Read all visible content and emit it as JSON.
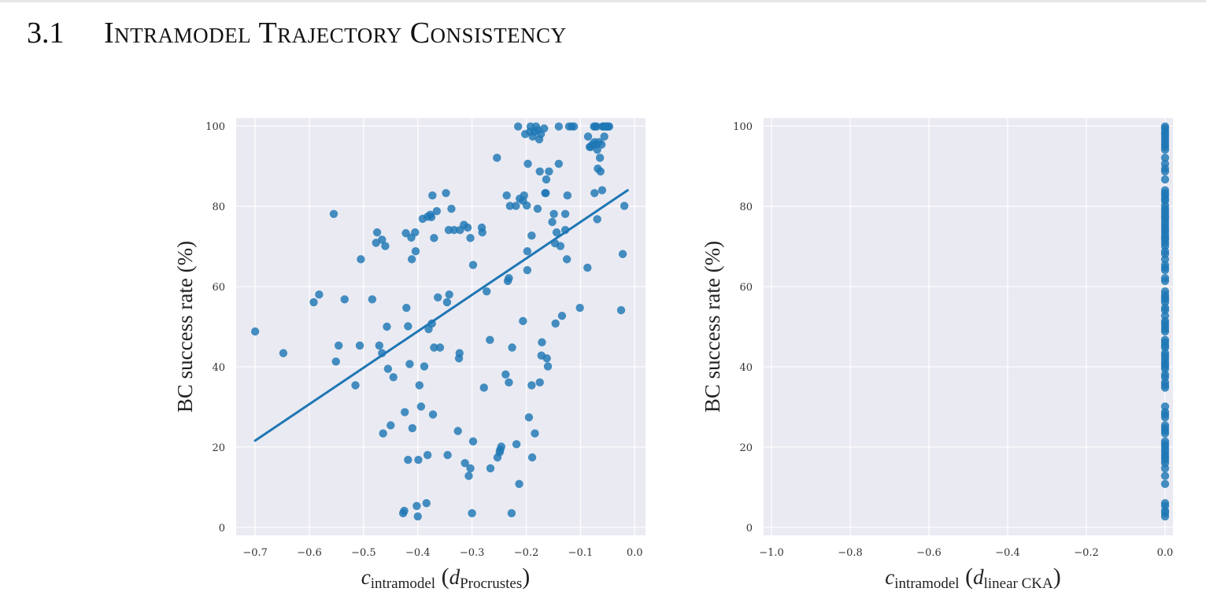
{
  "section": {
    "number": "3.1",
    "title": "Intramodel Trajectory Consistency"
  },
  "colors": {
    "point": "#1f77b4",
    "line": "#1f77b4",
    "plot_bg": "#eaeaf2",
    "grid": "#ffffff"
  },
  "chart_data": [
    {
      "type": "scatter",
      "title": "",
      "xlabel_main": "c",
      "xlabel_sub": "intramodel",
      "xlabel_paren_var": "d",
      "xlabel_paren_sub": "Procrustes",
      "ylabel": "BC success rate (%)",
      "xlim": [
        -0.735,
        0.02
      ],
      "ylim": [
        -2,
        102
      ],
      "xticks": [
        -0.7,
        -0.6,
        -0.5,
        -0.4,
        -0.3,
        -0.2,
        -0.1,
        0.0
      ],
      "xtick_labels": [
        "−0.7",
        "−0.6",
        "−0.5",
        "−0.4",
        "−0.3",
        "−0.2",
        "−0.1",
        "0.0"
      ],
      "yticks": [
        0,
        20,
        40,
        60,
        80,
        100
      ],
      "ytick_labels": [
        "0",
        "20",
        "40",
        "60",
        "80",
        "100"
      ],
      "grid": true,
      "regression": {
        "x": [
          -0.7,
          -0.013
        ],
        "y": [
          21.6,
          84.0
        ]
      },
      "points": [
        [
          -0.7,
          48.8
        ],
        [
          -0.648,
          43.4
        ],
        [
          -0.592,
          56.1
        ],
        [
          -0.582,
          58.0
        ],
        [
          -0.555,
          78.1
        ],
        [
          -0.551,
          41.3
        ],
        [
          -0.546,
          45.3
        ],
        [
          -0.535,
          56.8
        ],
        [
          -0.515,
          35.4
        ],
        [
          -0.507,
          45.3
        ],
        [
          -0.505,
          66.8
        ],
        [
          -0.484,
          56.8
        ],
        [
          -0.477,
          70.9
        ],
        [
          -0.475,
          73.5
        ],
        [
          -0.471,
          45.3
        ],
        [
          -0.466,
          71.7
        ],
        [
          -0.466,
          43.4
        ],
        [
          -0.464,
          23.4
        ],
        [
          -0.46,
          70.1
        ],
        [
          -0.457,
          50.0
        ],
        [
          -0.455,
          39.5
        ],
        [
          -0.45,
          25.4
        ],
        [
          -0.445,
          37.4
        ],
        [
          -0.427,
          3.5
        ],
        [
          -0.425,
          4.1
        ],
        [
          -0.424,
          28.7
        ],
        [
          -0.422,
          73.3
        ],
        [
          -0.421,
          54.7
        ],
        [
          -0.418,
          16.8
        ],
        [
          -0.418,
          50.1
        ],
        [
          -0.415,
          40.7
        ],
        [
          -0.412,
          72.2
        ],
        [
          -0.411,
          66.8
        ],
        [
          -0.41,
          24.7
        ],
        [
          -0.405,
          73.5
        ],
        [
          -0.404,
          68.8
        ],
        [
          -0.402,
          5.3
        ],
        [
          -0.4,
          2.7
        ],
        [
          -0.399,
          16.8
        ],
        [
          -0.397,
          35.4
        ],
        [
          -0.394,
          30.1
        ],
        [
          -0.391,
          76.9
        ],
        [
          -0.388,
          40.1
        ],
        [
          -0.384,
          6.0
        ],
        [
          -0.382,
          77.4
        ],
        [
          -0.382,
          18.0
        ],
        [
          -0.38,
          49.4
        ],
        [
          -0.377,
          77.9
        ],
        [
          -0.375,
          77.3
        ],
        [
          -0.374,
          50.8
        ],
        [
          -0.373,
          82.7
        ],
        [
          -0.372,
          28.1
        ],
        [
          -0.37,
          72.1
        ],
        [
          -0.37,
          44.8
        ],
        [
          -0.365,
          78.8
        ],
        [
          -0.363,
          57.3
        ],
        [
          -0.359,
          44.8
        ],
        [
          -0.348,
          83.3
        ],
        [
          -0.346,
          56.1
        ],
        [
          -0.345,
          18.0
        ],
        [
          -0.343,
          74.1
        ],
        [
          -0.342,
          58.0
        ],
        [
          -0.338,
          79.4
        ],
        [
          -0.333,
          74.1
        ],
        [
          -0.326,
          24.0
        ],
        [
          -0.324,
          42.1
        ],
        [
          -0.323,
          43.4
        ],
        [
          -0.322,
          74.1
        ],
        [
          -0.315,
          75.4
        ],
        [
          -0.313,
          16.0
        ],
        [
          -0.308,
          74.7
        ],
        [
          -0.306,
          12.8
        ],
        [
          -0.303,
          14.7
        ],
        [
          -0.303,
          72.1
        ],
        [
          -0.3,
          3.5
        ],
        [
          -0.298,
          65.4
        ],
        [
          -0.298,
          21.4
        ],
        [
          -0.282,
          74.7
        ],
        [
          -0.281,
          73.5
        ],
        [
          -0.278,
          34.8
        ],
        [
          -0.273,
          58.8
        ],
        [
          -0.267,
          46.7
        ],
        [
          -0.266,
          14.7
        ],
        [
          -0.254,
          92.1
        ],
        [
          -0.253,
          17.4
        ],
        [
          -0.249,
          18.7
        ],
        [
          -0.248,
          19.3
        ],
        [
          -0.246,
          20.1
        ],
        [
          -0.238,
          38.1
        ],
        [
          -0.236,
          82.7
        ],
        [
          -0.234,
          61.4
        ],
        [
          -0.232,
          36.1
        ],
        [
          -0.232,
          62.1
        ],
        [
          -0.23,
          80.1
        ],
        [
          -0.227,
          3.5
        ],
        [
          -0.226,
          44.8
        ],
        [
          -0.219,
          80.1
        ],
        [
          -0.218,
          20.7
        ],
        [
          -0.215,
          99.9
        ],
        [
          -0.213,
          10.8
        ],
        [
          -0.212,
          81.9
        ],
        [
          -0.206,
          81.4
        ],
        [
          -0.206,
          51.4
        ],
        [
          -0.204,
          82.7
        ],
        [
          -0.202,
          98.0
        ],
        [
          -0.199,
          80.2
        ],
        [
          -0.198,
          64.1
        ],
        [
          -0.198,
          68.8
        ],
        [
          -0.197,
          90.6
        ],
        [
          -0.195,
          27.4
        ],
        [
          -0.193,
          98.6
        ],
        [
          -0.192,
          99.9
        ],
        [
          -0.19,
          35.4
        ],
        [
          -0.19,
          72.7
        ],
        [
          -0.189,
          17.4
        ],
        [
          -0.188,
          97.4
        ],
        [
          -0.185,
          98.6
        ],
        [
          -0.184,
          23.4
        ],
        [
          -0.182,
          99.9
        ],
        [
          -0.179,
          79.4
        ],
        [
          -0.178,
          99.0
        ],
        [
          -0.176,
          96.7
        ],
        [
          -0.175,
          36.1
        ],
        [
          -0.175,
          88.7
        ],
        [
          -0.173,
          98.0
        ],
        [
          -0.172,
          42.8
        ],
        [
          -0.171,
          46.1
        ],
        [
          -0.167,
          99.4
        ],
        [
          -0.165,
          83.3
        ],
        [
          -0.164,
          83.3
        ],
        [
          -0.163,
          86.7
        ],
        [
          -0.162,
          42.1
        ],
        [
          -0.16,
          40.1
        ],
        [
          -0.158,
          88.7
        ],
        [
          -0.152,
          76.1
        ],
        [
          -0.149,
          78.1
        ],
        [
          -0.147,
          70.8
        ],
        [
          -0.146,
          50.8
        ],
        [
          -0.144,
          73.5
        ],
        [
          -0.14,
          99.9
        ],
        [
          -0.14,
          90.6
        ],
        [
          -0.137,
          70.1
        ],
        [
          -0.134,
          52.7
        ],
        [
          -0.128,
          74.1
        ],
        [
          -0.128,
          78.1
        ],
        [
          -0.125,
          66.8
        ],
        [
          -0.124,
          82.7
        ],
        [
          -0.121,
          99.9
        ],
        [
          -0.116,
          99.9
        ],
        [
          -0.112,
          99.9
        ],
        [
          -0.101,
          54.7
        ],
        [
          -0.087,
          64.7
        ],
        [
          -0.086,
          97.4
        ],
        [
          -0.083,
          94.8
        ],
        [
          -0.081,
          94.8
        ],
        [
          -0.078,
          95.4
        ],
        [
          -0.075,
          99.9
        ],
        [
          -0.074,
          96.0
        ],
        [
          -0.074,
          83.3
        ],
        [
          -0.073,
          99.9
        ],
        [
          -0.071,
          95.4
        ],
        [
          -0.07,
          99.9
        ],
        [
          -0.069,
          94.1
        ],
        [
          -0.069,
          76.8
        ],
        [
          -0.068,
          89.4
        ],
        [
          -0.066,
          96.0
        ],
        [
          -0.064,
          92.1
        ],
        [
          -0.063,
          88.7
        ],
        [
          -0.061,
          95.4
        ],
        [
          -0.06,
          84.0
        ],
        [
          -0.059,
          99.9
        ],
        [
          -0.058,
          99.9
        ],
        [
          -0.056,
          97.4
        ],
        [
          -0.055,
          99.9
        ],
        [
          -0.053,
          99.9
        ],
        [
          -0.051,
          99.9
        ],
        [
          -0.049,
          99.9
        ],
        [
          -0.047,
          99.9
        ],
        [
          -0.025,
          54.1
        ],
        [
          -0.022,
          68.1
        ],
        [
          -0.019,
          80.1
        ]
      ]
    },
    {
      "type": "scatter",
      "title": "",
      "xlabel_main": "c",
      "xlabel_sub": "intramodel",
      "xlabel_paren_var": "d",
      "xlabel_paren_sub": "linear CKA",
      "ylabel": "BC success rate (%)",
      "xlim": [
        -1.02,
        0.02
      ],
      "ylim": [
        -2,
        102
      ],
      "xticks": [
        -1.0,
        -0.8,
        -0.6,
        -0.4,
        -0.2,
        0.0
      ],
      "xtick_labels": [
        "−1.0",
        "−0.8",
        "−0.6",
        "−0.4",
        "−0.2",
        "0.0"
      ],
      "yticks": [
        0,
        20,
        40,
        60,
        80,
        100
      ],
      "ytick_labels": [
        "0",
        "20",
        "40",
        "60",
        "80",
        "100"
      ],
      "grid": true,
      "points": [
        [
          0,
          99.9
        ],
        [
          0,
          99.4
        ],
        [
          0,
          98.6
        ],
        [
          0,
          98.0
        ],
        [
          0,
          97.4
        ],
        [
          0,
          96.7
        ],
        [
          0,
          96.0
        ],
        [
          0,
          95.4
        ],
        [
          0,
          94.8
        ],
        [
          0,
          94.1
        ],
        [
          0,
          92.1
        ],
        [
          0,
          90.6
        ],
        [
          0,
          89.4
        ],
        [
          0,
          88.7
        ],
        [
          0,
          86.7
        ],
        [
          0,
          84.0
        ],
        [
          0,
          83.3
        ],
        [
          0,
          82.7
        ],
        [
          0,
          81.9
        ],
        [
          0,
          81.4
        ],
        [
          0,
          80.2
        ],
        [
          0,
          79.4
        ],
        [
          0,
          78.8
        ],
        [
          0,
          78.1
        ],
        [
          0,
          77.4
        ],
        [
          0,
          76.9
        ],
        [
          0,
          76.1
        ],
        [
          0,
          75.4
        ],
        [
          0,
          74.7
        ],
        [
          0,
          74.1
        ],
        [
          0,
          73.5
        ],
        [
          0,
          72.7
        ],
        [
          0,
          72.1
        ],
        [
          0,
          71.7
        ],
        [
          0,
          70.9
        ],
        [
          0,
          70.1
        ],
        [
          0,
          68.8
        ],
        [
          0,
          68.1
        ],
        [
          0,
          66.8
        ],
        [
          0,
          65.4
        ],
        [
          0,
          64.7
        ],
        [
          0,
          64.1
        ],
        [
          0,
          62.1
        ],
        [
          0,
          61.4
        ],
        [
          0,
          58.8
        ],
        [
          0,
          58.0
        ],
        [
          0,
          57.3
        ],
        [
          0,
          56.8
        ],
        [
          0,
          56.1
        ],
        [
          0,
          54.7
        ],
        [
          0,
          54.1
        ],
        [
          0,
          52.7
        ],
        [
          0,
          51.4
        ],
        [
          0,
          50.8
        ],
        [
          0,
          50.1
        ],
        [
          0,
          49.4
        ],
        [
          0,
          48.8
        ],
        [
          0,
          46.7
        ],
        [
          0,
          46.1
        ],
        [
          0,
          45.3
        ],
        [
          0,
          44.8
        ],
        [
          0,
          43.4
        ],
        [
          0,
          42.8
        ],
        [
          0,
          42.1
        ],
        [
          0,
          41.3
        ],
        [
          0,
          40.7
        ],
        [
          0,
          40.1
        ],
        [
          0,
          39.5
        ],
        [
          0,
          38.1
        ],
        [
          0,
          37.4
        ],
        [
          0,
          36.1
        ],
        [
          0,
          35.4
        ],
        [
          0,
          34.8
        ],
        [
          0,
          30.1
        ],
        [
          0,
          28.7
        ],
        [
          0,
          28.1
        ],
        [
          0,
          27.4
        ],
        [
          0,
          25.4
        ],
        [
          0,
          24.7
        ],
        [
          0,
          24.0
        ],
        [
          0,
          23.4
        ],
        [
          0,
          21.4
        ],
        [
          0,
          20.7
        ],
        [
          0,
          20.1
        ],
        [
          0,
          19.3
        ],
        [
          0,
          18.7
        ],
        [
          0,
          18.0
        ],
        [
          0,
          17.4
        ],
        [
          0,
          16.8
        ],
        [
          0,
          16.0
        ],
        [
          0,
          14.7
        ],
        [
          0,
          12.8
        ],
        [
          0,
          10.8
        ],
        [
          0,
          6.0
        ],
        [
          0,
          5.3
        ],
        [
          0,
          4.1
        ],
        [
          0,
          3.5
        ],
        [
          0,
          2.7
        ]
      ]
    }
  ]
}
